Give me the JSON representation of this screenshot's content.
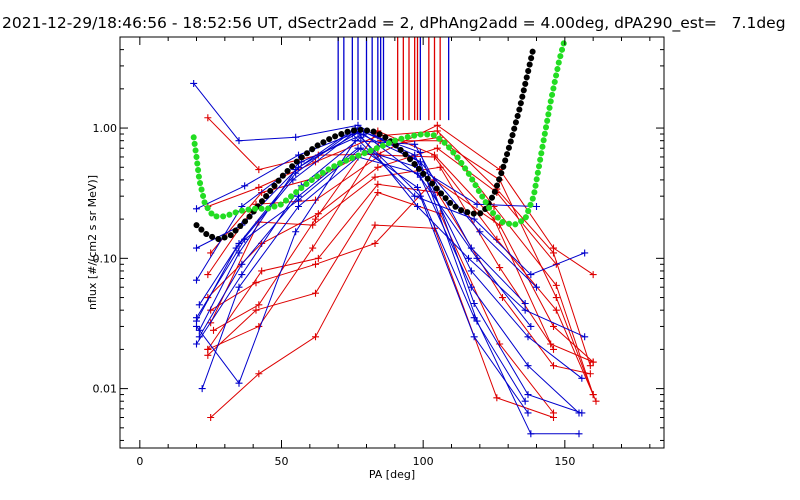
{
  "chart_data": {
    "type": "line",
    "title": "2021-12-29/18:46:56 - 18:52:56 UT, dSectr2add = 2, dPhAng2add = 4.00deg, dPA290_est=   7.1deg",
    "xlabel": "PA [deg]",
    "ylabel": "nflux [#/(cm2 s sr MeV)]",
    "xlim": [
      -7,
      185
    ],
    "ylim": [
      0.0035,
      5
    ],
    "yscale": "log",
    "xticks": [
      0,
      50,
      100,
      150
    ],
    "xtick_labels": [
      "0",
      "50",
      "100",
      "150"
    ],
    "yticks": [
      0.01,
      0.1,
      1.0
    ],
    "ytick_labels": [
      "0.01",
      "0.10",
      "1.00"
    ],
    "grid": false,
    "colors": {
      "blue": "#0000cc",
      "red": "#dd0000",
      "black": "#000000",
      "green": "#22dd22"
    },
    "vertical_markers": {
      "blue_x": [
        70,
        72,
        75,
        77,
        80,
        82,
        84,
        85,
        86,
        99,
        109
      ],
      "red_x": [
        91,
        93,
        95,
        97,
        98,
        102,
        104,
        106
      ],
      "top_y": 4.5,
      "bottom_y": 1.15
    },
    "black_curve": [
      [
        20,
        0.18
      ],
      [
        24,
        0.15
      ],
      [
        28,
        0.14
      ],
      [
        32,
        0.15
      ],
      [
        38,
        0.2
      ],
      [
        44,
        0.29
      ],
      [
        50,
        0.42
      ],
      [
        56,
        0.57
      ],
      [
        62,
        0.72
      ],
      [
        68,
        0.85
      ],
      [
        74,
        0.95
      ],
      [
        78,
        0.97
      ],
      [
        82,
        0.95
      ],
      [
        86,
        0.87
      ],
      [
        90,
        0.75
      ],
      [
        94,
        0.62
      ],
      [
        98,
        0.5
      ],
      [
        102,
        0.4
      ],
      [
        106,
        0.32
      ],
      [
        110,
        0.26
      ],
      [
        114,
        0.23
      ],
      [
        118,
        0.22
      ],
      [
        120,
        0.22
      ],
      [
        122,
        0.24
      ],
      [
        125,
        0.31
      ],
      [
        128,
        0.48
      ],
      [
        131,
        0.8
      ],
      [
        134,
        1.4
      ],
      [
        137,
        2.7
      ],
      [
        139,
        4.2
      ]
    ],
    "green_curve": [
      [
        19,
        0.85
      ],
      [
        20,
        0.6
      ],
      [
        21,
        0.4
      ],
      [
        23,
        0.26
      ],
      [
        26,
        0.21
      ],
      [
        30,
        0.21
      ],
      [
        35,
        0.23
      ],
      [
        40,
        0.24
      ],
      [
        45,
        0.24
      ],
      [
        50,
        0.26
      ],
      [
        55,
        0.32
      ],
      [
        60,
        0.39
      ],
      [
        65,
        0.46
      ],
      [
        70,
        0.53
      ],
      [
        75,
        0.59
      ],
      [
        80,
        0.65
      ],
      [
        85,
        0.72
      ],
      [
        90,
        0.8
      ],
      [
        95,
        0.86
      ],
      [
        100,
        0.9
      ],
      [
        104,
        0.88
      ],
      [
        108,
        0.76
      ],
      [
        112,
        0.6
      ],
      [
        116,
        0.45
      ],
      [
        120,
        0.32
      ],
      [
        124,
        0.23
      ],
      [
        128,
        0.19
      ],
      [
        132,
        0.18
      ],
      [
        136,
        0.2
      ],
      [
        139,
        0.3
      ],
      [
        142,
        0.7
      ],
      [
        145,
        1.6
      ],
      [
        148,
        3.3
      ],
      [
        150,
        4.8
      ]
    ],
    "blue_series": [
      [
        [
          19,
          2.2
        ],
        [
          35,
          0.8
        ],
        [
          55,
          0.85
        ],
        [
          77,
          1.05
        ],
        [
          99,
          0.55
        ],
        [
          119,
          0.033
        ],
        [
          138,
          0.0045
        ],
        [
          155,
          0.0045
        ]
      ],
      [
        [
          20,
          0.24
        ],
        [
          37,
          0.36
        ],
        [
          56,
          0.62
        ],
        [
          78,
          0.95
        ],
        [
          99,
          0.65
        ],
        [
          118,
          0.045
        ],
        [
          137,
          0.009
        ],
        [
          156,
          0.0065
        ]
      ],
      [
        [
          20,
          0.068
        ],
        [
          36,
          0.25
        ],
        [
          57,
          0.55
        ],
        [
          79,
          0.9
        ],
        [
          99,
          0.42
        ],
        [
          117,
          0.06
        ],
        [
          137,
          0.015
        ],
        [
          155,
          0.0065
        ]
      ],
      [
        [
          21,
          0.044
        ],
        [
          35,
          0.13
        ],
        [
          55,
          0.45
        ],
        [
          76,
          0.98
        ],
        [
          98,
          0.25
        ],
        [
          116,
          0.1
        ],
        [
          136,
          0.04
        ],
        [
          157,
          0.025
        ]
      ],
      [
        [
          20,
          0.033
        ],
        [
          34,
          0.12
        ],
        [
          54,
          0.4
        ],
        [
          75,
          0.9
        ],
        [
          97,
          0.3
        ],
        [
          118,
          0.2
        ],
        [
          138,
          0.075
        ],
        [
          157,
          0.11
        ]
      ],
      [
        [
          21,
          0.025
        ],
        [
          36,
          0.09
        ],
        [
          56,
          0.3
        ],
        [
          77,
          0.7
        ],
        [
          98,
          0.5
        ],
        [
          119,
          0.26
        ],
        [
          140,
          0.25
        ]
      ],
      [
        [
          21,
          0.028
        ],
        [
          35,
          0.11
        ],
        [
          55,
          0.48
        ],
        [
          76,
          1.0
        ],
        [
          97,
          0.62
        ],
        [
          117,
          0.08
        ],
        [
          137,
          0.025
        ],
        [
          156,
          0.012
        ]
      ],
      [
        [
          20,
          0.022
        ],
        [
          36,
          0.075
        ],
        [
          57,
          0.36
        ],
        [
          78,
          0.85
        ],
        [
          99,
          0.3
        ],
        [
          118,
          0.025
        ],
        [
          137,
          0.0065
        ]
      ],
      [
        [
          22,
          0.01
        ],
        [
          35,
          0.06
        ],
        [
          56,
          0.25
        ],
        [
          77,
          0.6
        ],
        [
          98,
          0.45
        ],
        [
          119,
          0.1
        ],
        [
          138,
          0.03
        ]
      ],
      [
        [
          20,
          0.03
        ],
        [
          35,
          0.011
        ],
        [
          55,
          0.16
        ],
        [
          76,
          0.8
        ],
        [
          97,
          0.75
        ],
        [
          117,
          0.12
        ],
        [
          136,
          0.045
        ]
      ],
      [
        [
          20,
          0.12
        ],
        [
          36,
          0.18
        ],
        [
          56,
          0.5
        ],
        [
          77,
          0.92
        ],
        [
          99,
          0.55
        ],
        [
          120,
          0.16
        ],
        [
          140,
          0.06
        ]
      ],
      [
        [
          20,
          0.035
        ],
        [
          37,
          0.14
        ],
        [
          56,
          0.28
        ],
        [
          78,
          0.7
        ],
        [
          98,
          0.35
        ],
        [
          118,
          0.035
        ],
        [
          136,
          0.008
        ]
      ]
    ],
    "red_series": [
      [
        [
          24,
          1.2
        ],
        [
          42,
          0.48
        ],
        [
          63,
          0.62
        ],
        [
          84,
          0.63
        ],
        [
          105,
          1.05
        ],
        [
          127,
          0.48
        ],
        [
          146,
          0.12
        ],
        [
          160,
          0.075
        ]
      ],
      [
        [
          24,
          0.25
        ],
        [
          42,
          0.35
        ],
        [
          62,
          0.55
        ],
        [
          84,
          0.87
        ],
        [
          105,
          0.95
        ],
        [
          126,
          0.34
        ],
        [
          146,
          0.11
        ],
        [
          159,
          0.015
        ]
      ],
      [
        [
          25,
          0.11
        ],
        [
          43,
          0.32
        ],
        [
          63,
          0.42
        ],
        [
          84,
          0.72
        ],
        [
          106,
          0.85
        ],
        [
          125,
          0.25
        ],
        [
          147,
          0.062
        ],
        [
          160,
          0.009
        ]
      ],
      [
        [
          24,
          0.075
        ],
        [
          41,
          0.26
        ],
        [
          62,
          0.28
        ],
        [
          85,
          0.62
        ],
        [
          104,
          0.6
        ],
        [
          126,
          0.14
        ],
        [
          147,
          0.04
        ],
        [
          161,
          0.008
        ]
      ],
      [
        [
          25,
          0.032
        ],
        [
          42,
          0.19
        ],
        [
          61,
          0.18
        ],
        [
          83,
          0.42
        ],
        [
          106,
          0.5
        ],
        [
          127,
          0.085
        ],
        [
          145,
          0.022
        ],
        [
          160,
          0.016
        ]
      ],
      [
        [
          24,
          0.02
        ],
        [
          43,
          0.08
        ],
        [
          63,
          0.1
        ],
        [
          84,
          0.37
        ],
        [
          105,
          0.32
        ],
        [
          128,
          0.05
        ],
        [
          146,
          0.015
        ],
        [
          159,
          0.013
        ]
      ],
      [
        [
          24,
          0.018
        ],
        [
          41,
          0.04
        ],
        [
          62,
          0.054
        ],
        [
          84,
          0.32
        ],
        [
          106,
          0.22
        ],
        [
          127,
          0.022
        ],
        [
          146,
          0.0065
        ]
      ],
      [
        [
          25,
          0.006
        ],
        [
          42,
          0.013
        ],
        [
          62,
          0.025
        ],
        [
          83,
          0.18
        ],
        [
          104,
          0.17
        ],
        [
          126,
          0.0085
        ],
        [
          146,
          0.006
        ]
      ],
      [
        [
          24,
          0.05
        ],
        [
          43,
          0.13
        ],
        [
          63,
          0.22
        ],
        [
          84,
          0.5
        ],
        [
          105,
          0.7
        ],
        [
          126,
          0.32
        ],
        [
          147,
          0.09
        ]
      ],
      [
        [
          25,
          0.04
        ],
        [
          41,
          0.065
        ],
        [
          62,
          0.09
        ],
        [
          83,
          0.13
        ],
        [
          104,
          0.4
        ],
        [
          127,
          0.18
        ],
        [
          146,
          0.03
        ],
        [
          160,
          0.016
        ]
      ],
      [
        [
          24,
          0.02
        ],
        [
          42,
          0.03
        ],
        [
          61,
          0.12
        ],
        [
          85,
          0.8
        ],
        [
          106,
          0.8
        ],
        [
          127,
          0.4
        ],
        [
          147,
          0.05
        ],
        [
          160,
          0.009
        ]
      ],
      [
        [
          26,
          0.028
        ],
        [
          42,
          0.044
        ],
        [
          62,
          0.2
        ],
        [
          84,
          0.95
        ],
        [
          104,
          0.62
        ],
        [
          125,
          0.2
        ],
        [
          146,
          0.02
        ]
      ]
    ]
  }
}
